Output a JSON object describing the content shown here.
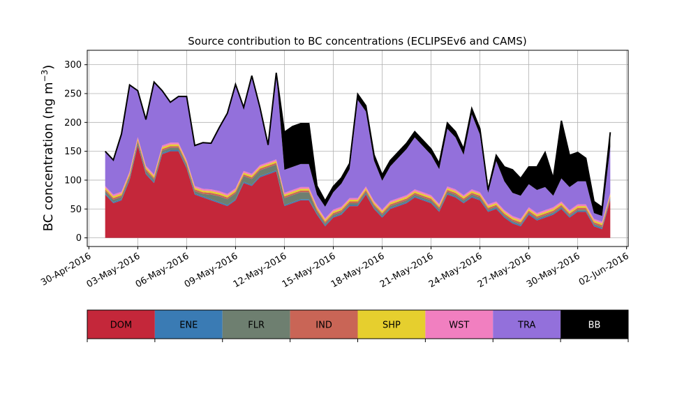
{
  "chart_data": {
    "type": "area",
    "stacked": true,
    "title": "Source contribution to BC concentrations (ECLIPSEv6 and CAMS)",
    "ylabel": "BC concentration (ng m",
    "ylabel_sup": "−3",
    "ylabel_close": ")",
    "xlabel": "",
    "xlim": [
      "2016-04-30",
      "2016-06-02"
    ],
    "ylim": [
      -15,
      325
    ],
    "yticks": [
      0,
      50,
      100,
      150,
      200,
      250,
      300
    ],
    "xticks": [
      {
        "date": "2016-04-30",
        "label": "30-Apr-2016"
      },
      {
        "date": "2016-05-03",
        "label": "03-May-2016"
      },
      {
        "date": "2016-05-06",
        "label": "06-May-2016"
      },
      {
        "date": "2016-05-09",
        "label": "09-May-2016"
      },
      {
        "date": "2016-05-12",
        "label": "12-May-2016"
      },
      {
        "date": "2016-05-15",
        "label": "15-May-2016"
      },
      {
        "date": "2016-05-18",
        "label": "18-May-2016"
      },
      {
        "date": "2016-05-21",
        "label": "21-May-2016"
      },
      {
        "date": "2016-05-24",
        "label": "24-May-2016"
      },
      {
        "date": "2016-05-27",
        "label": "27-May-2016"
      },
      {
        "date": "2016-05-30",
        "label": "30-May-2016"
      },
      {
        "date": "2016-06-02",
        "label": "02-Jun-2016"
      }
    ],
    "grid": true,
    "total_line": true,
    "x": [
      "2016-05-01",
      "2016-05-01 12:00",
      "2016-05-02",
      "2016-05-02 12:00",
      "2016-05-03",
      "2016-05-03 12:00",
      "2016-05-04",
      "2016-05-04 12:00",
      "2016-05-05",
      "2016-05-05 12:00",
      "2016-05-06",
      "2016-05-06 12:00",
      "2016-05-07",
      "2016-05-07 12:00",
      "2016-05-08",
      "2016-05-08 12:00",
      "2016-05-09",
      "2016-05-09 12:00",
      "2016-05-10",
      "2016-05-10 12:00",
      "2016-05-11",
      "2016-05-11 12:00",
      "2016-05-12",
      "2016-05-12 12:00",
      "2016-05-13",
      "2016-05-13 12:00",
      "2016-05-14",
      "2016-05-14 12:00",
      "2016-05-15",
      "2016-05-15 12:00",
      "2016-05-16",
      "2016-05-16 12:00",
      "2016-05-17",
      "2016-05-17 12:00",
      "2016-05-18",
      "2016-05-18 12:00",
      "2016-05-19",
      "2016-05-19 12:00",
      "2016-05-20",
      "2016-05-20 12:00",
      "2016-05-21",
      "2016-05-21 12:00",
      "2016-05-22",
      "2016-05-22 12:00",
      "2016-05-23",
      "2016-05-23 12:00",
      "2016-05-24",
      "2016-05-24 12:00",
      "2016-05-25",
      "2016-05-25 12:00",
      "2016-05-26",
      "2016-05-26 12:00",
      "2016-05-27",
      "2016-05-27 12:00",
      "2016-05-28",
      "2016-05-28 12:00",
      "2016-05-29",
      "2016-05-29 12:00",
      "2016-05-30",
      "2016-05-30 12:00",
      "2016-05-31",
      "2016-05-31 12:00",
      "2016-06-01"
    ],
    "series": [
      {
        "name": "DOM",
        "color": "#c4273a",
        "values": [
          75,
          60,
          65,
          100,
          160,
          110,
          95,
          145,
          150,
          150,
          120,
          75,
          70,
          65,
          60,
          55,
          65,
          95,
          90,
          105,
          110,
          115,
          55,
          60,
          65,
          65,
          40,
          20,
          35,
          40,
          55,
          55,
          75,
          50,
          35,
          50,
          55,
          60,
          70,
          65,
          60,
          45,
          75,
          70,
          60,
          70,
          65,
          45,
          50,
          35,
          25,
          20,
          40,
          30,
          35,
          40,
          50,
          35,
          45,
          45,
          20,
          15,
          65
        ]
      },
      {
        "name": "ENE",
        "color": "#3a7bb4",
        "values": [
          2,
          2,
          2,
          2,
          2,
          2,
          2,
          2,
          2,
          2,
          2,
          2,
          2,
          2,
          2,
          2,
          2,
          2,
          2,
          2,
          2,
          2,
          2,
          2,
          2,
          2,
          2,
          2,
          2,
          2,
          2,
          2,
          2,
          2,
          2,
          2,
          2,
          2,
          2,
          2,
          2,
          2,
          2,
          2,
          2,
          2,
          2,
          2,
          2,
          2,
          2,
          2,
          2,
          2,
          2,
          2,
          2,
          2,
          2,
          2,
          2,
          2,
          2
        ]
      },
      {
        "name": "FLR",
        "color": "#6e7f70",
        "values": [
          4,
          4,
          4,
          4,
          4,
          4,
          4,
          4,
          4,
          4,
          4,
          4,
          4,
          8,
          10,
          10,
          10,
          10,
          10,
          10,
          10,
          10,
          12,
          12,
          12,
          12,
          4,
          3,
          3,
          3,
          3,
          3,
          3,
          3,
          3,
          3,
          3,
          3,
          3,
          3,
          3,
          3,
          3,
          3,
          3,
          3,
          3,
          2,
          2,
          2,
          2,
          2,
          2,
          2,
          2,
          2,
          2,
          2,
          2,
          2,
          2,
          2,
          2
        ]
      },
      {
        "name": "IND",
        "color": "#c96556",
        "values": [
          3,
          3,
          3,
          3,
          3,
          3,
          3,
          3,
          3,
          3,
          3,
          3,
          3,
          3,
          3,
          3,
          3,
          3,
          3,
          3,
          3,
          3,
          3,
          3,
          3,
          3,
          3,
          3,
          3,
          3,
          3,
          3,
          3,
          3,
          3,
          3,
          3,
          3,
          3,
          3,
          3,
          3,
          3,
          3,
          3,
          3,
          3,
          3,
          3,
          3,
          3,
          3,
          3,
          3,
          3,
          3,
          3,
          3,
          3,
          3,
          3,
          3,
          3
        ]
      },
      {
        "name": "SHP",
        "color": "#e6cf2e",
        "values": [
          3,
          3,
          3,
          3,
          3,
          3,
          3,
          3,
          3,
          3,
          3,
          3,
          3,
          3,
          3,
          3,
          3,
          3,
          3,
          3,
          3,
          3,
          3,
          3,
          3,
          3,
          3,
          3,
          3,
          3,
          3,
          3,
          3,
          3,
          3,
          3,
          3,
          3,
          3,
          3,
          3,
          3,
          3,
          3,
          3,
          3,
          3,
          3,
          3,
          3,
          3,
          3,
          3,
          3,
          3,
          3,
          3,
          3,
          3,
          3,
          3,
          3,
          3
        ]
      },
      {
        "name": "WST",
        "color": "#f17fc0",
        "values": [
          3,
          3,
          3,
          3,
          3,
          3,
          3,
          3,
          3,
          3,
          3,
          3,
          3,
          3,
          3,
          3,
          3,
          3,
          3,
          3,
          3,
          3,
          3,
          3,
          3,
          3,
          3,
          3,
          3,
          3,
          3,
          3,
          3,
          3,
          3,
          3,
          3,
          3,
          3,
          3,
          3,
          3,
          3,
          3,
          3,
          3,
          3,
          3,
          3,
          3,
          3,
          3,
          3,
          3,
          3,
          3,
          3,
          3,
          3,
          3,
          3,
          3,
          3
        ]
      },
      {
        "name": "TRA",
        "color": "#9370db",
        "values": [
          60,
          60,
          100,
          150,
          80,
          80,
          160,
          95,
          70,
          80,
          110,
          70,
          80,
          80,
          110,
          140,
          180,
          110,
          170,
          100,
          30,
          150,
          40,
          40,
          40,
          40,
          20,
          20,
          30,
          40,
          50,
          170,
          130,
          70,
          50,
          60,
          70,
          80,
          90,
          80,
          70,
          60,
          100,
          90,
          70,
          130,
          100,
          20,
          70,
          50,
          40,
          40,
          40,
          40,
          40,
          20,
          40,
          40,
          40,
          40,
          10,
          10,
          80
        ]
      },
      {
        "name": "BB",
        "color": "#000000",
        "values": [
          0,
          0,
          0,
          0,
          0,
          0,
          0,
          0,
          0,
          0,
          0,
          0,
          0,
          0,
          0,
          0,
          0,
          0,
          0,
          0,
          0,
          0,
          65,
          70,
          70,
          70,
          15,
          10,
          10,
          10,
          10,
          10,
          10,
          10,
          10,
          10,
          10,
          10,
          10,
          10,
          10,
          10,
          10,
          10,
          10,
          10,
          10,
          5,
          10,
          25,
          40,
          30,
          30,
          40,
          60,
          30,
          100,
          55,
          50,
          40,
          20,
          15,
          25
        ]
      }
    ]
  },
  "legend": {
    "items": [
      {
        "label": "DOM",
        "color": "#c4273a",
        "text_color": "#000000"
      },
      {
        "label": "ENE",
        "color": "#3a7bb4",
        "text_color": "#000000"
      },
      {
        "label": "FLR",
        "color": "#6e7f70",
        "text_color": "#000000"
      },
      {
        "label": "IND",
        "color": "#c96556",
        "text_color": "#000000"
      },
      {
        "label": "SHP",
        "color": "#e6cf2e",
        "text_color": "#000000"
      },
      {
        "label": "WST",
        "color": "#f17fc0",
        "text_color": "#000000"
      },
      {
        "label": "TRA",
        "color": "#9370db",
        "text_color": "#000000"
      },
      {
        "label": "BB",
        "color": "#000000",
        "text_color": "#ffffff"
      }
    ]
  }
}
